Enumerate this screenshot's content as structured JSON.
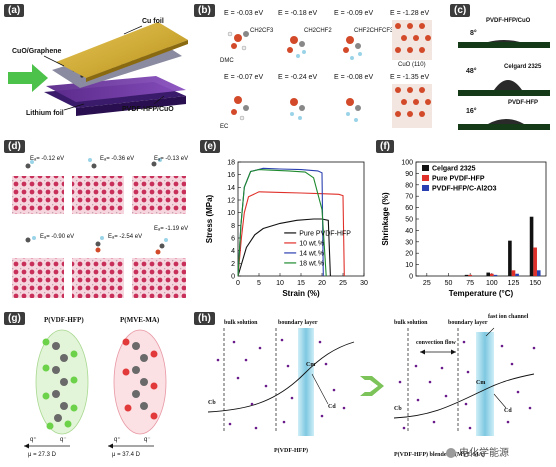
{
  "panels": {
    "a": {
      "label": "(a)",
      "cu_foil": "Cu foil",
      "cuo_graphene": "CuO/Graphene",
      "lithium_foil": "Lithium foil",
      "separator": "PVDF-HFP/CuO"
    },
    "b": {
      "label": "(b)",
      "energies_top": [
        "E = -0.03 eV",
        "E = -0.18 eV",
        "E = -0.09 eV",
        "E = -1.28 eV"
      ],
      "energies_bottom": [
        "E = -0.07 eV",
        "E = -0.24 eV",
        "E = -0.08 eV",
        "E = -1.35 eV"
      ],
      "molecules": [
        "DMC",
        "CH2CF3",
        "CH2CHF2",
        "CHF2CHFCF3"
      ],
      "ec": "EC",
      "surface": "CuO (110)"
    },
    "c": {
      "label": "(c)",
      "items": [
        {
          "angle": "8°",
          "name": "PVDF-HFP/CuO"
        },
        {
          "angle": "48°",
          "name": "Celgard 2325"
        },
        {
          "angle": "16°",
          "name": "PVDF-HFP"
        }
      ]
    },
    "d": {
      "label": "(d)",
      "energies": [
        "Eₐ= -0.12 eV",
        "Eₐ= -0.36 eV",
        "Eₐ= -0.13 eV",
        "Eₐ= -0.90 eV",
        "Eₐ= -2.54 eV",
        "Eₐ= -1.19 eV"
      ]
    },
    "e": {
      "label": "(e)"
    },
    "f": {
      "label": "(f)"
    },
    "g": {
      "label": "(g)",
      "left_title": "P(VDF-HFP)",
      "right_title": "P(MVE-MA)",
      "left_mu": "μ = 27.3 D",
      "right_mu": "μ = 37.4 D",
      "q_plus": "q⁺",
      "q_minus": "q⁻"
    },
    "h": {
      "label": "(h)",
      "bulk": "bulk solution",
      "boundary": "boundary layer",
      "fast_ion": "fast ion channel",
      "convection": "convection flow",
      "cb": "Cb",
      "cm": "Cm",
      "cd": "Cd",
      "left_caption": "P(VDF-HFP)",
      "right_caption": "P(VDF-HFP) blended P(MVE-MA)"
    },
    "watermark": "电化学能源"
  },
  "chart_data": [
    {
      "type": "line",
      "panel": "e",
      "xlabel": "Strain (%)",
      "ylabel": "Stress (MPa)",
      "xlim": [
        0,
        30
      ],
      "ylim": [
        0,
        18
      ],
      "xticks": [
        0,
        5,
        10,
        15,
        20,
        25,
        30
      ],
      "yticks": [
        0,
        2,
        4,
        6,
        8,
        10,
        12,
        14,
        16,
        18
      ],
      "legend_position": "bottom-right",
      "series": [
        {
          "name": "Pure PVDF-HFP",
          "color": "#111111",
          "x": [
            0,
            2,
            4,
            6,
            10,
            14,
            18,
            20,
            21.5,
            22
          ],
          "y": [
            0,
            4.5,
            6.5,
            7.5,
            8.3,
            8.8,
            9.0,
            9.0,
            8.8,
            0
          ]
        },
        {
          "name": "10 wt.%",
          "color": "#e0302a",
          "x": [
            0,
            0.8,
            1.5,
            2.5,
            5,
            10,
            15,
            20,
            24,
            25,
            25.3
          ],
          "y": [
            0,
            6,
            10,
            12.5,
            13.3,
            13.2,
            13.1,
            13.0,
            12.9,
            12.7,
            0
          ]
        },
        {
          "name": "14 wt.%",
          "color": "#2a3fb0",
          "x": [
            0,
            0.7,
            1.5,
            3,
            6,
            10,
            15,
            19,
            20,
            20.3
          ],
          "y": [
            0,
            8,
            14,
            16.5,
            17.0,
            16.9,
            16.8,
            16.6,
            16.3,
            0
          ]
        },
        {
          "name": "18 wt.%",
          "color": "#1e8a2e",
          "x": [
            0,
            0.7,
            1.5,
            3,
            5,
            8,
            12,
            16,
            18,
            20,
            21
          ],
          "y": [
            0,
            8,
            14,
            16.5,
            16.8,
            16.7,
            16.6,
            16.4,
            15.5,
            10.5,
            0
          ]
        }
      ]
    },
    {
      "type": "bar",
      "panel": "f",
      "xlabel": "Temperature (°C)",
      "ylabel": "Shrinkage (%)",
      "categories": [
        25,
        50,
        75,
        100,
        125,
        150
      ],
      "ylim": [
        0,
        100
      ],
      "yticks": [
        0,
        10,
        20,
        30,
        40,
        50,
        60,
        70,
        80,
        90,
        100
      ],
      "legend_position": "top-left",
      "series": [
        {
          "name": "Celgard 2325",
          "color": "#111111",
          "values": [
            0,
            0,
            1,
            3,
            31,
            52
          ]
        },
        {
          "name": "Pure PVDF-HFP",
          "color": "#e0302a",
          "values": [
            0,
            0,
            1,
            2,
            5,
            25
          ]
        },
        {
          "name": "PVDF-HFP/C-Al2O3",
          "color": "#2a3fb0",
          "values": [
            0,
            0,
            0,
            1,
            2,
            5
          ]
        }
      ]
    }
  ]
}
